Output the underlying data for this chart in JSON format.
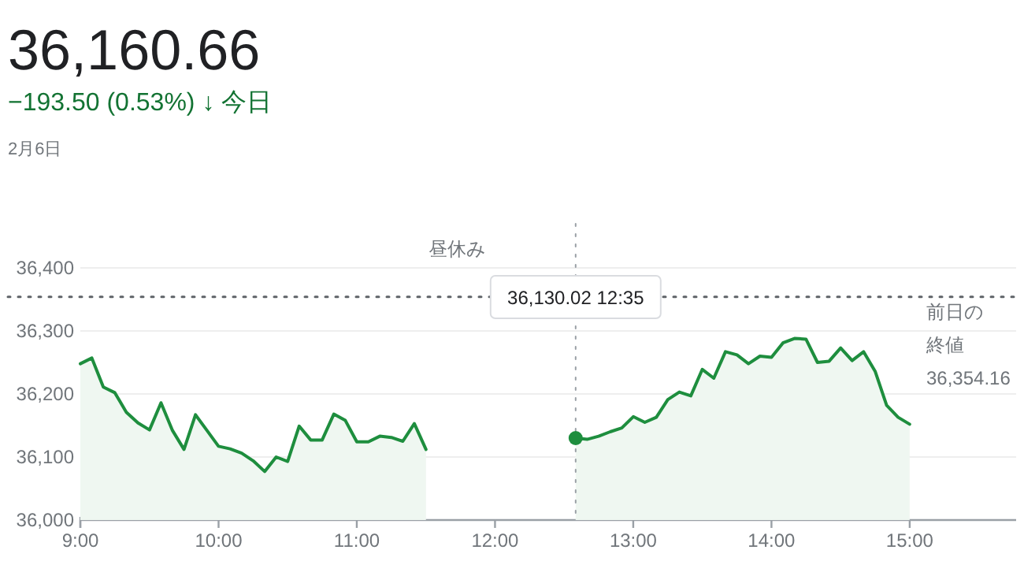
{
  "chart_data": {
    "type": "area",
    "title": "36,160.66",
    "subtitle": "−193.50 (0.53%) ↓ 今日",
    "annotations": [
      "2月6日",
      "昼休み",
      "36,130.02  12:35"
    ],
    "series": [
      {
        "color": "#1e8e3e",
        "x": [
          9,
          9.0833,
          9.1667,
          9.25,
          9.3333,
          9.4167,
          9.5,
          9.5833,
          9.6667,
          9.75,
          9.8333,
          9.9167,
          10,
          10.0833,
          10.1667,
          10.25,
          10.3333,
          10.4167,
          10.5,
          10.5833,
          10.6667,
          10.75,
          10.8333,
          10.9167,
          11,
          11.0833,
          11.1667,
          11.25,
          11.3333,
          11.4167,
          11.5
        ],
        "values": [
          36248,
          36257,
          36211,
          36202,
          36171,
          36154,
          36143,
          36186,
          36142,
          36112,
          36167,
          36142,
          36117,
          36113,
          36106,
          36094,
          36077,
          36100,
          36093,
          36149,
          36127,
          36127,
          36168,
          36158,
          36124,
          36124,
          36133,
          36131,
          36125,
          36153,
          36112
        ]
      },
      {
        "color": "#1e8e3e",
        "x": [
          12.5833,
          12.6667,
          12.75,
          12.8333,
          12.9167,
          13,
          13.0833,
          13.1667,
          13.25,
          13.3333,
          13.4167,
          13.5,
          13.5833,
          13.6667,
          13.75,
          13.8333,
          13.9167,
          14,
          14.0833,
          14.1667,
          14.25,
          14.3333,
          14.4167,
          14.5,
          14.5833,
          14.6667,
          14.75,
          14.8333,
          14.9167,
          15
        ],
        "values": [
          36130,
          36128,
          36133,
          36140,
          36146,
          36164,
          36155,
          36163,
          36191,
          36203,
          36197,
          36239,
          36225,
          36267,
          36262,
          36248,
          36260,
          36258,
          36281,
          36288,
          36287,
          36250,
          36252,
          36273,
          36253,
          36267,
          36236,
          36182,
          36163,
          36152
        ]
      }
    ],
    "xlim": [
      9,
      15.77
    ],
    "xticks": [
      {
        "value": 9,
        "label": "9:00"
      },
      {
        "value": 10,
        "label": "10:00"
      },
      {
        "value": 11,
        "label": "11:00"
      },
      {
        "value": 12,
        "label": "12:00"
      },
      {
        "value": 13,
        "label": "13:00"
      },
      {
        "value": 14,
        "label": "14:00"
      },
      {
        "value": 15,
        "label": "15:00"
      }
    ],
    "ylim": [
      36000,
      36400
    ],
    "yticks": [
      {
        "value": 36000,
        "label": "36,000"
      },
      {
        "value": 36100,
        "label": "36,100"
      },
      {
        "value": 36200,
        "label": "36,200"
      },
      {
        "value": 36300,
        "label": "36,300"
      },
      {
        "value": 36400,
        "label": "36,400"
      }
    ],
    "grid": "y",
    "ref_lines": [
      {
        "axis": "y",
        "value": 36354.16,
        "label": "前日の終値 36,354.16",
        "line_style": "dotted",
        "color": "#5f6368"
      },
      {
        "axis": "x",
        "value": 12.5833,
        "line_style": "dotted",
        "color": "#9aa0a6"
      }
    ]
  }
}
